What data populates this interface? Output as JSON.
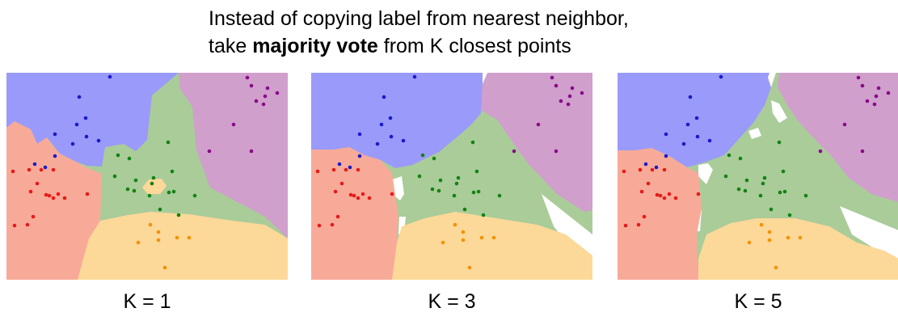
{
  "title": {
    "line1": "Instead of copying label from nearest neighbor,",
    "line2_pre": "take ",
    "line2_bold": "majority vote",
    "line2_post": " from K closest points"
  },
  "colors": {
    "blue_region": "#9a9afa",
    "purple_region": "#d09fcc",
    "green_region": "#a9cc99",
    "red_region": "#f8aa98",
    "orange_region": "#fcd899",
    "blue_point": "#1a1acc",
    "purple_point": "#8a0a8a",
    "green_point": "#138213",
    "red_point": "#e61a1a",
    "orange_point": "#f29300",
    "unclassified_region": "#ffffff"
  },
  "panels": [
    {
      "id": "k1",
      "label": "K = 1"
    },
    {
      "id": "k3",
      "label": "K = 3"
    },
    {
      "id": "k5",
      "label": "K = 5"
    }
  ]
}
